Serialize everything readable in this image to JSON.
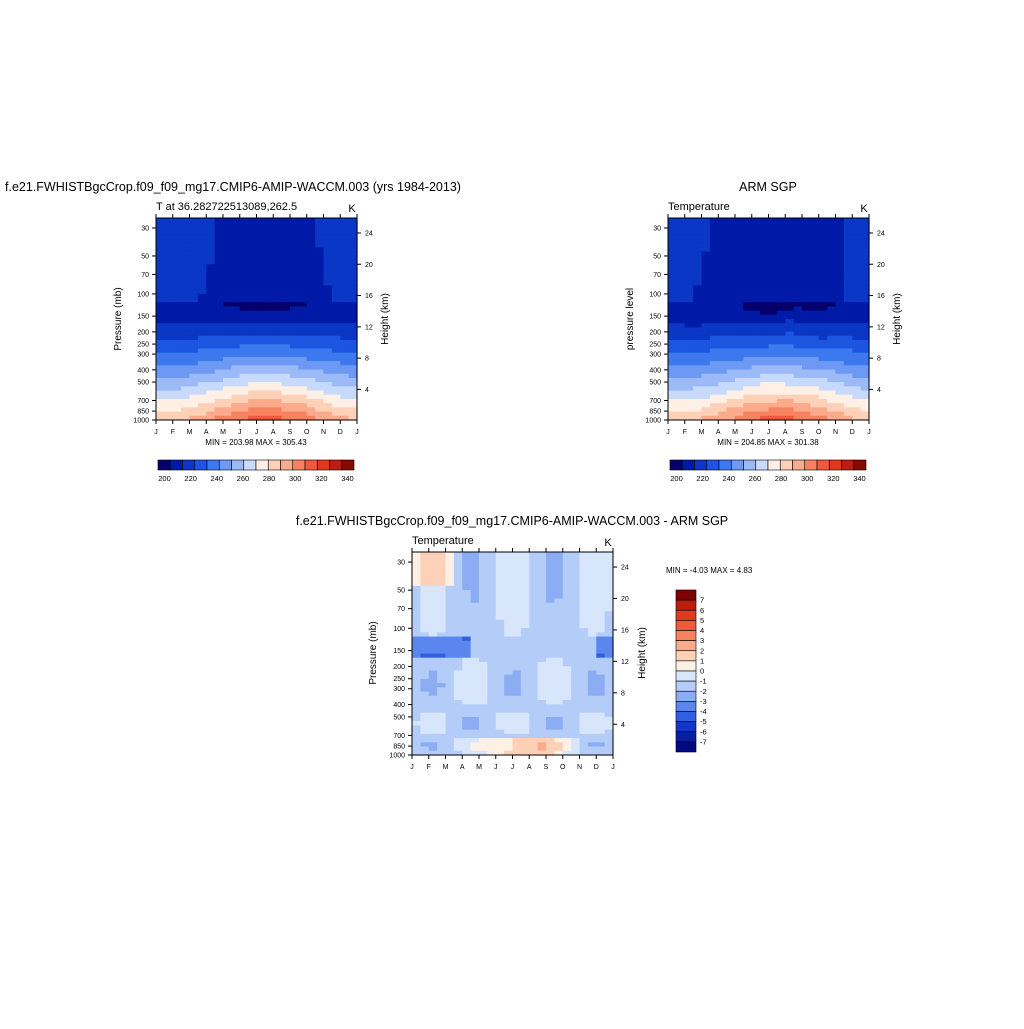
{
  "titles": {
    "top_left": "f.e21.FWHISTBgcCrop.f09_f09_mg17.CMIP6-AMIP-WACCM.003 (yrs 1984-2013)",
    "top_right": "ARM SGP",
    "bottom": "f.e21.FWHISTBgcCrop.f09_f09_mg17.CMIP6-AMIP-WACCM.003 - ARM SGP"
  },
  "months": [
    "J",
    "F",
    "M",
    "A",
    "M",
    "J",
    "J",
    "A",
    "S",
    "O",
    "N",
    "D",
    "J"
  ],
  "pressure_ticks": [
    "30",
    "50",
    "70",
    "100",
    "150",
    "200",
    "250",
    "300",
    "400",
    "500",
    "700",
    "850",
    "1000"
  ],
  "height_ticks": [
    "24",
    "20",
    "16",
    "12",
    "8",
    "4"
  ],
  "temp_colorbar_labels": [
    "200",
    "220",
    "240",
    "260",
    "280",
    "300",
    "320",
    "340"
  ],
  "temp_colors": [
    "#05006a",
    "#001aa8",
    "#0b37c6",
    "#1b55e0",
    "#3c78ee",
    "#6d98f4",
    "#9cbaf7",
    "#c8dafb",
    "#fff0e6",
    "#fdd0b8",
    "#fbaa8c",
    "#f78260",
    "#ef5a38",
    "#e03a1c",
    "#b81f0e",
    "#800c02"
  ],
  "diff_colorbar_labels": [
    "7",
    "6",
    "5",
    "4",
    "3",
    "2",
    "1",
    "0",
    "-1",
    "-2",
    "-3",
    "-4",
    "-5",
    "-6",
    "-7"
  ],
  "diff_colors": [
    "#800000",
    "#b81f0e",
    "#e03a1c",
    "#ef5a38",
    "#f78260",
    "#fbaa8c",
    "#fdd0b8",
    "#fff0e6",
    "#d8e6fb",
    "#b4cdf8",
    "#8cacf4",
    "#5b86ee",
    "#3060e2",
    "#1436c4",
    "#061ea0",
    "#000a80"
  ],
  "chart_data": [
    {
      "type": "heatmap",
      "subtitle_left": "T at 36.282722513089,262.5",
      "units": "K",
      "ylabel": "Pressure (mb)",
      "y2label": "Height (km)",
      "min_max_text": "MIN = 203.98 MAX = 305.43",
      "min": 203.98,
      "max": 305.43,
      "colorbar_range": [
        195,
        345
      ]
    },
    {
      "type": "heatmap",
      "subtitle_left": "Temperature",
      "units": "K",
      "ylabel": "pressure level",
      "y2label": "Height (km)",
      "min_max_text": "MIN = 204.85 MAX = 301.38",
      "min": 204.85,
      "max": 301.38,
      "colorbar_range": [
        195,
        345
      ]
    },
    {
      "type": "heatmap",
      "subtitle_left": "Temperature",
      "units": "K",
      "ylabel": "Pressure (mb)",
      "y2label": "Height (km)",
      "min_max_text": "MIN =  -4.03 MAX =   4.83",
      "min": -4.03,
      "max": 4.83,
      "colorbar_range": [
        -7.5,
        7.5
      ]
    }
  ]
}
